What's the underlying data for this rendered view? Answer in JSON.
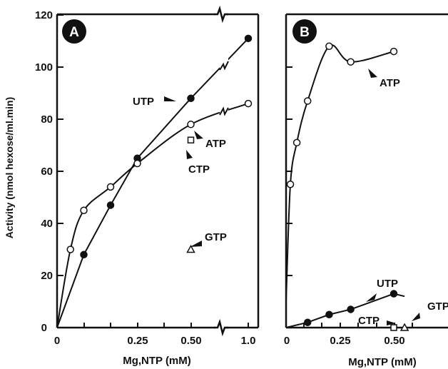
{
  "chart_data": [
    {
      "panel": "A",
      "type": "line",
      "xlabel": "Mg,NTP (mM)",
      "ylabel": "Activity (nmol hexose/ml.min)",
      "xlim": [
        0,
        1.0
      ],
      "ylim": [
        0,
        120
      ],
      "xticks": [
        "0",
        "0.25",
        "0.50",
        "1.0"
      ],
      "yticks": [
        "0",
        "20",
        "40",
        "60",
        "80",
        "100",
        "120"
      ],
      "series": [
        {
          "name": "UTP",
          "marker": "filled-circle",
          "x": [
            0,
            0.1,
            0.2,
            0.3,
            0.5,
            1.0
          ],
          "y": [
            0,
            28,
            47,
            65,
            88,
            111
          ]
        },
        {
          "name": "ATP",
          "marker": "open-circle",
          "x": [
            0,
            0.05,
            0.1,
            0.2,
            0.3,
            0.5,
            1.0
          ],
          "y": [
            0,
            30,
            45,
            54,
            63,
            78,
            86
          ]
        },
        {
          "name": "CTP",
          "marker": "open-square",
          "x": [
            0.5
          ],
          "y": [
            72
          ]
        },
        {
          "name": "GTP",
          "marker": "open-triangle",
          "x": [
            0.5
          ],
          "y": [
            30
          ]
        }
      ]
    },
    {
      "panel": "B",
      "type": "line",
      "xlabel": "Mg,NTP (mM)",
      "ylabel": "",
      "xlim": [
        0,
        0.6
      ],
      "ylim": [
        0,
        120
      ],
      "xticks": [
        "0",
        "0.25",
        "0.50"
      ],
      "series": [
        {
          "name": "ATP",
          "marker": "open-circle",
          "x": [
            0.02,
            0.05,
            0.1,
            0.2,
            0.3,
            0.5
          ],
          "y": [
            55,
            71,
            87,
            108,
            102,
            106
          ]
        },
        {
          "name": "UTP",
          "marker": "filled-circle",
          "x": [
            0.1,
            0.2,
            0.3,
            0.5
          ],
          "y": [
            2,
            5,
            7,
            13
          ]
        },
        {
          "name": "CTP",
          "marker": "open-square",
          "x": [
            0.5
          ],
          "y": [
            0
          ]
        },
        {
          "name": "GTP",
          "marker": "open-triangle",
          "x": [
            0.55
          ],
          "y": [
            0
          ]
        }
      ]
    }
  ]
}
